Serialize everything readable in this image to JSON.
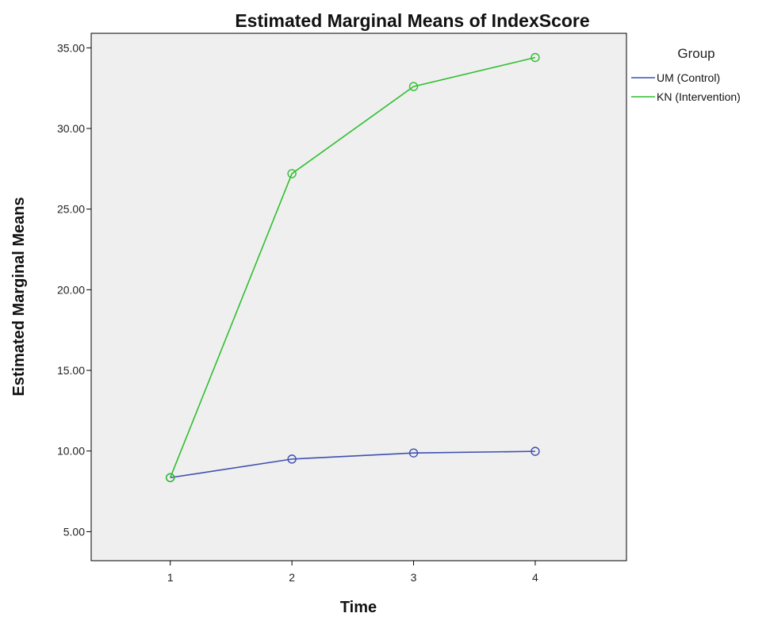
{
  "chart_data": {
    "type": "line",
    "title": "Estimated Marginal Means of IndexScore",
    "xlabel": "Time",
    "ylabel": "Estimated Marginal Means",
    "x": [
      "1",
      "2",
      "3",
      "4"
    ],
    "xlim": [
      0.35,
      4.75
    ],
    "ylim": [
      3.2,
      35.9
    ],
    "yticks": [
      5,
      10,
      15,
      20,
      25,
      30,
      35
    ],
    "ytick_labels": [
      "5.00",
      "10.00",
      "15.00",
      "20.00",
      "25.00",
      "30.00",
      "35.00"
    ],
    "grid": false,
    "plot_background": "#efefef",
    "legend": {
      "title": "Group",
      "position": "right"
    },
    "series": [
      {
        "name": "UM (Control)",
        "color": "#3f4fb0",
        "values": [
          8.35,
          9.5,
          9.88,
          9.98
        ]
      },
      {
        "name": "KN (Intervention)",
        "color": "#2fbf2f",
        "values": [
          8.35,
          27.2,
          32.6,
          34.4
        ]
      }
    ]
  }
}
